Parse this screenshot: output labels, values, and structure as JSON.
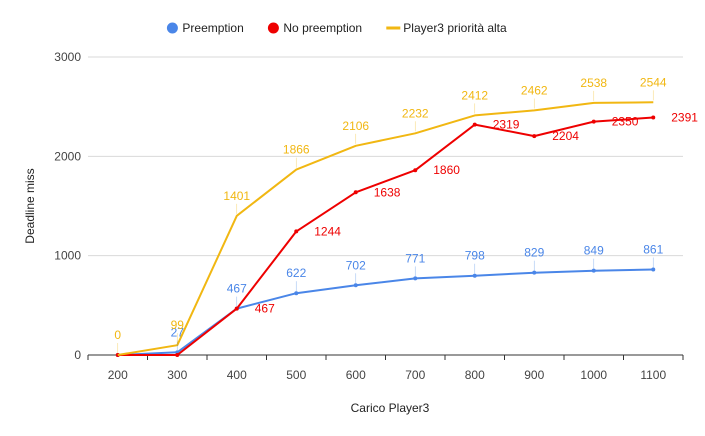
{
  "chart_data": {
    "type": "line",
    "title": "",
    "xlabel": "Carico Player3",
    "ylabel": "Deadline miss",
    "x": [
      200,
      300,
      400,
      500,
      600,
      700,
      800,
      900,
      1000,
      1100
    ],
    "ylim": [
      0,
      3000
    ],
    "yticks": [
      0,
      1000,
      2000,
      3000
    ],
    "grid": true,
    "legend_position": "top",
    "series": [
      {
        "name": "Preemption",
        "color": "#4a86e8",
        "values": [
          0,
          27,
          467,
          622,
          702,
          771,
          798,
          829,
          849,
          861
        ],
        "labels": [
          "",
          "27",
          "467",
          "622",
          "702",
          "771",
          "798",
          "829",
          "849",
          "861"
        ],
        "label_position": "above",
        "markers": true
      },
      {
        "name": "No preemption",
        "color": "#ee0000",
        "values": [
          0,
          0,
          467,
          1244,
          1638,
          1860,
          2319,
          2204,
          2350,
          2391
        ],
        "labels": [
          "",
          "",
          "467",
          "1244",
          "1638",
          "1860",
          "2319",
          "2204",
          "2350",
          "2391"
        ],
        "label_position": "right",
        "markers": true
      },
      {
        "name": "Player3 priorità alta",
        "color": "#f1b712",
        "values": [
          0,
          99,
          1401,
          1866,
          2106,
          2232,
          2412,
          2462,
          2538,
          2544
        ],
        "labels": [
          "0",
          "99",
          "1401",
          "1866",
          "2106",
          "2232",
          "2412",
          "2462",
          "2538",
          "2544"
        ],
        "label_position": "above",
        "markers": false
      }
    ]
  }
}
